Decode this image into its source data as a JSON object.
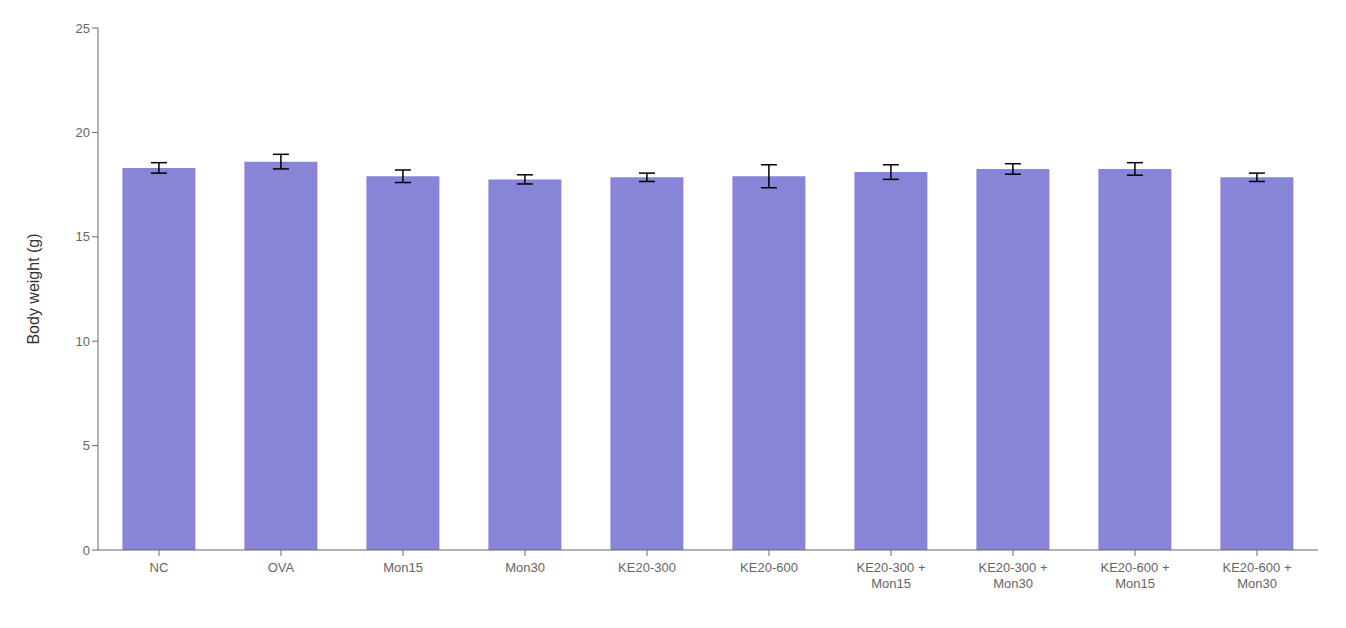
{
  "chart_data": {
    "type": "bar",
    "ylabel": "Body weight (g)",
    "categories": [
      "NC",
      "OVA",
      "Mon15",
      "Mon30",
      "KE20-300",
      "KE20-600",
      "KE20-300 +\nMon15",
      "KE20-300 +\nMon30",
      "KE20-600 +\nMon15",
      "KE20-600 +\nMon30"
    ],
    "values": [
      18.3,
      18.6,
      17.9,
      17.75,
      17.85,
      17.9,
      18.1,
      18.25,
      18.25,
      17.85
    ],
    "errors": [
      0.25,
      0.35,
      0.3,
      0.22,
      0.2,
      0.55,
      0.35,
      0.25,
      0.3,
      0.2
    ],
    "color": "#8884d8",
    "ylim": [
      0,
      25
    ],
    "yticks": [
      0,
      5,
      10,
      15,
      20,
      25
    ],
    "grid": false
  }
}
